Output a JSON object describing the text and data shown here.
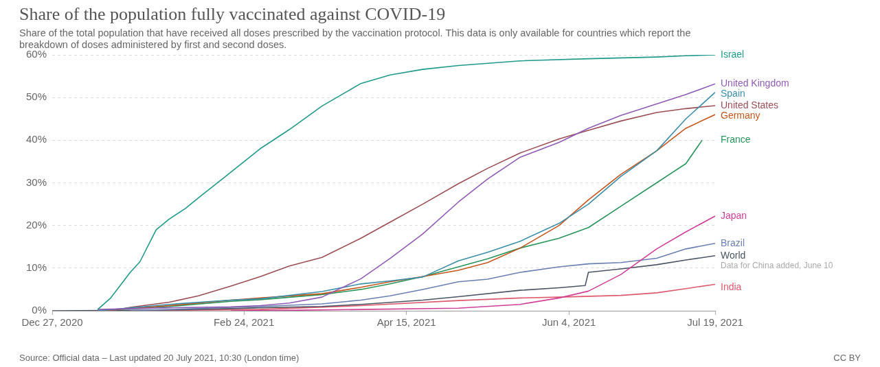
{
  "chart_data": {
    "type": "line",
    "title": "Share of the population fully vaccinated against COVID-19",
    "subtitle": "Share of the total population that have received all doses prescribed by the vaccination protocol. This data is only available for countries which report the breakdown of doses administered by first and second doses.",
    "xlim": [
      "2020-12-27",
      "2021-07-19"
    ],
    "xticks": [
      {
        "value": "2020-12-27",
        "label": "Dec 27, 2020"
      },
      {
        "value": "2021-02-24",
        "label": "Feb 24, 2021"
      },
      {
        "value": "2021-04-15",
        "label": "Apr 15, 2021"
      },
      {
        "value": "2021-06-04",
        "label": "Jun 4, 2021"
      },
      {
        "value": "2021-07-19",
        "label": "Jul 19, 2021"
      }
    ],
    "ylim": [
      0,
      60
    ],
    "yticks": [
      {
        "value": 0,
        "label": "0%"
      },
      {
        "value": 10,
        "label": "10%"
      },
      {
        "value": 20,
        "label": "20%"
      },
      {
        "value": 30,
        "label": "30%"
      },
      {
        "value": 40,
        "label": "40%"
      },
      {
        "value": 50,
        "label": "50%"
      },
      {
        "value": 60,
        "label": "60%"
      }
    ],
    "grid": "y",
    "series": [
      {
        "name": "Israel",
        "color": "#1f9a8a",
        "x": [
          "2021-01-10",
          "2021-01-14",
          "2021-01-17",
          "2021-01-20",
          "2021-01-23",
          "2021-01-28",
          "2021-02-01",
          "2021-02-06",
          "2021-02-10",
          "2021-02-20",
          "2021-03-01",
          "2021-03-10",
          "2021-03-20",
          "2021-04-01",
          "2021-04-10",
          "2021-04-20",
          "2021-05-01",
          "2021-05-20",
          "2021-06-10",
          "2021-07-01",
          "2021-07-10",
          "2021-07-19"
        ],
        "values": [
          0.3,
          3,
          6,
          9,
          11.5,
          19,
          21.5,
          24,
          26.5,
          32.5,
          38,
          42.5,
          48,
          53.3,
          55.3,
          56.6,
          57.5,
          58.6,
          59.1,
          59.5,
          59.8,
          60
        ]
      },
      {
        "name": "United Kingdom",
        "color": "#8e5bb5",
        "x": [
          "2021-01-10",
          "2021-02-01",
          "2021-02-20",
          "2021-03-01",
          "2021-03-10",
          "2021-03-20",
          "2021-04-01",
          "2021-04-10",
          "2021-04-20",
          "2021-05-01",
          "2021-05-10",
          "2021-05-20",
          "2021-06-01",
          "2021-06-10",
          "2021-06-20",
          "2021-07-01",
          "2021-07-10",
          "2021-07-19"
        ],
        "values": [
          0.3,
          0.7,
          0.9,
          1.2,
          1.8,
          3.2,
          7.5,
          12.3,
          18,
          25.5,
          30.9,
          36,
          39.5,
          42.8,
          45.8,
          48.5,
          50.7,
          53.2
        ]
      },
      {
        "name": "Spain",
        "color": "#3a8ea8",
        "x": [
          "2021-01-10",
          "2021-02-01",
          "2021-02-20",
          "2021-03-01",
          "2021-03-20",
          "2021-04-01",
          "2021-04-10",
          "2021-04-20",
          "2021-05-01",
          "2021-05-10",
          "2021-05-20",
          "2021-06-01",
          "2021-06-10",
          "2021-06-20",
          "2021-07-01",
          "2021-07-10",
          "2021-07-19"
        ],
        "values": [
          0,
          1.5,
          2.5,
          2.8,
          4.5,
          6.3,
          7,
          7.9,
          11.7,
          13.7,
          16.3,
          20.5,
          25,
          31.5,
          37.5,
          45,
          51.2
        ]
      },
      {
        "name": "United States",
        "color": "#9b4d55",
        "x": [
          "2021-01-14",
          "2021-01-20",
          "2021-02-01",
          "2021-02-10",
          "2021-02-20",
          "2021-03-01",
          "2021-03-10",
          "2021-03-20",
          "2021-04-01",
          "2021-04-10",
          "2021-04-20",
          "2021-05-01",
          "2021-05-10",
          "2021-05-20",
          "2021-06-01",
          "2021-06-10",
          "2021-06-20",
          "2021-07-01",
          "2021-07-10",
          "2021-07-19"
        ],
        "values": [
          0,
          0.8,
          2,
          3.5,
          5.8,
          8,
          10.5,
          12.5,
          17,
          20.8,
          25,
          29.8,
          33.4,
          37,
          40.3,
          42.3,
          44.5,
          46.5,
          47.4,
          48.1
        ]
      },
      {
        "name": "Germany",
        "color": "#c4561c",
        "x": [
          "2021-01-10",
          "2021-02-01",
          "2021-02-20",
          "2021-03-01",
          "2021-03-20",
          "2021-04-01",
          "2021-04-10",
          "2021-04-20",
          "2021-05-01",
          "2021-05-10",
          "2021-05-20",
          "2021-06-01",
          "2021-06-10",
          "2021-06-20",
          "2021-07-01",
          "2021-07-10",
          "2021-07-19"
        ],
        "values": [
          0,
          1.2,
          2.5,
          3,
          4,
          5.5,
          6.8,
          8,
          9.5,
          11.3,
          14.7,
          20,
          26,
          32,
          37.5,
          42.8,
          46
        ]
      },
      {
        "name": "France",
        "color": "#27945c",
        "x": [
          "2021-01-10",
          "2021-02-01",
          "2021-02-20",
          "2021-03-01",
          "2021-03-20",
          "2021-04-01",
          "2021-04-10",
          "2021-04-20",
          "2021-05-01",
          "2021-05-10",
          "2021-05-20",
          "2021-06-01",
          "2021-06-10",
          "2021-06-20",
          "2021-07-01",
          "2021-07-10",
          "2021-07-15"
        ],
        "values": [
          0,
          1,
          2.2,
          2.6,
          3.8,
          5,
          6.3,
          8,
          10.3,
          12.2,
          14.7,
          17,
          19.5,
          24.5,
          30,
          34.5,
          40
        ]
      },
      {
        "name": "Japan",
        "color": "#d03f96",
        "x": [
          "2021-02-20",
          "2021-03-10",
          "2021-04-01",
          "2021-05-01",
          "2021-05-20",
          "2021-06-01",
          "2021-06-10",
          "2021-06-20",
          "2021-07-01",
          "2021-07-10",
          "2021-07-19"
        ],
        "values": [
          0,
          0.1,
          0.3,
          0.6,
          1.5,
          3,
          4.6,
          8.5,
          14.5,
          18.5,
          22.2
        ]
      },
      {
        "name": "Brazil",
        "color": "#6a7fb0",
        "x": [
          "2021-01-20",
          "2021-02-01",
          "2021-02-20",
          "2021-03-01",
          "2021-03-20",
          "2021-04-01",
          "2021-04-10",
          "2021-04-20",
          "2021-05-01",
          "2021-05-10",
          "2021-05-20",
          "2021-06-01",
          "2021-06-10",
          "2021-06-20",
          "2021-07-01",
          "2021-07-10",
          "2021-07-19"
        ],
        "values": [
          0,
          0.3,
          0.8,
          1,
          1.6,
          2.5,
          3.5,
          5,
          6.8,
          7.4,
          9,
          10.3,
          11,
          11.3,
          12.3,
          14.5,
          15.8
        ]
      },
      {
        "name": "World",
        "color": "#4a5462",
        "x": [
          "2020-12-27",
          "2021-01-20",
          "2021-02-01",
          "2021-02-20",
          "2021-03-01",
          "2021-03-20",
          "2021-04-01",
          "2021-04-20",
          "2021-05-01",
          "2021-05-20",
          "2021-06-01",
          "2021-06-09",
          "2021-06-10",
          "2021-06-20",
          "2021-07-01",
          "2021-07-10",
          "2021-07-19"
        ],
        "values": [
          0,
          0.1,
          0.2,
          0.5,
          0.7,
          1,
          1.5,
          2.5,
          3.3,
          4.8,
          5.4,
          5.9,
          9,
          9.8,
          10.8,
          11.9,
          12.9
        ]
      },
      {
        "name": "India",
        "color": "#dd5a6e",
        "x": [
          "2021-01-20",
          "2021-02-01",
          "2021-03-01",
          "2021-04-01",
          "2021-05-01",
          "2021-05-20",
          "2021-06-01",
          "2021-06-20",
          "2021-07-01",
          "2021-07-10",
          "2021-07-19"
        ],
        "values": [
          0,
          0.1,
          0.3,
          1.2,
          2.4,
          3,
          3.2,
          3.6,
          4.2,
          5.2,
          6.2
        ]
      }
    ],
    "annotations": [
      "Data for China added, June 10",
      "Source: Official data – Last updated 20 July 2021, 10:30 (London time)",
      "CC BY"
    ]
  }
}
